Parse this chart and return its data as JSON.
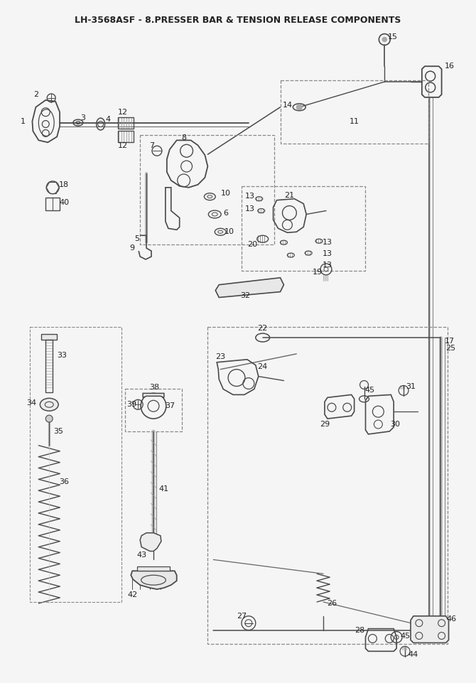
{
  "title": "LH-3568ASF - 8.PRESSER BAR & TENSION RELEASE COMPONENTS",
  "bg": "#f5f5f5",
  "lc": "#4a4a4a",
  "dc": "#888888",
  "tc": "#222222",
  "fig_width": 6.7,
  "fig_height": 9.61,
  "dpi": 100
}
